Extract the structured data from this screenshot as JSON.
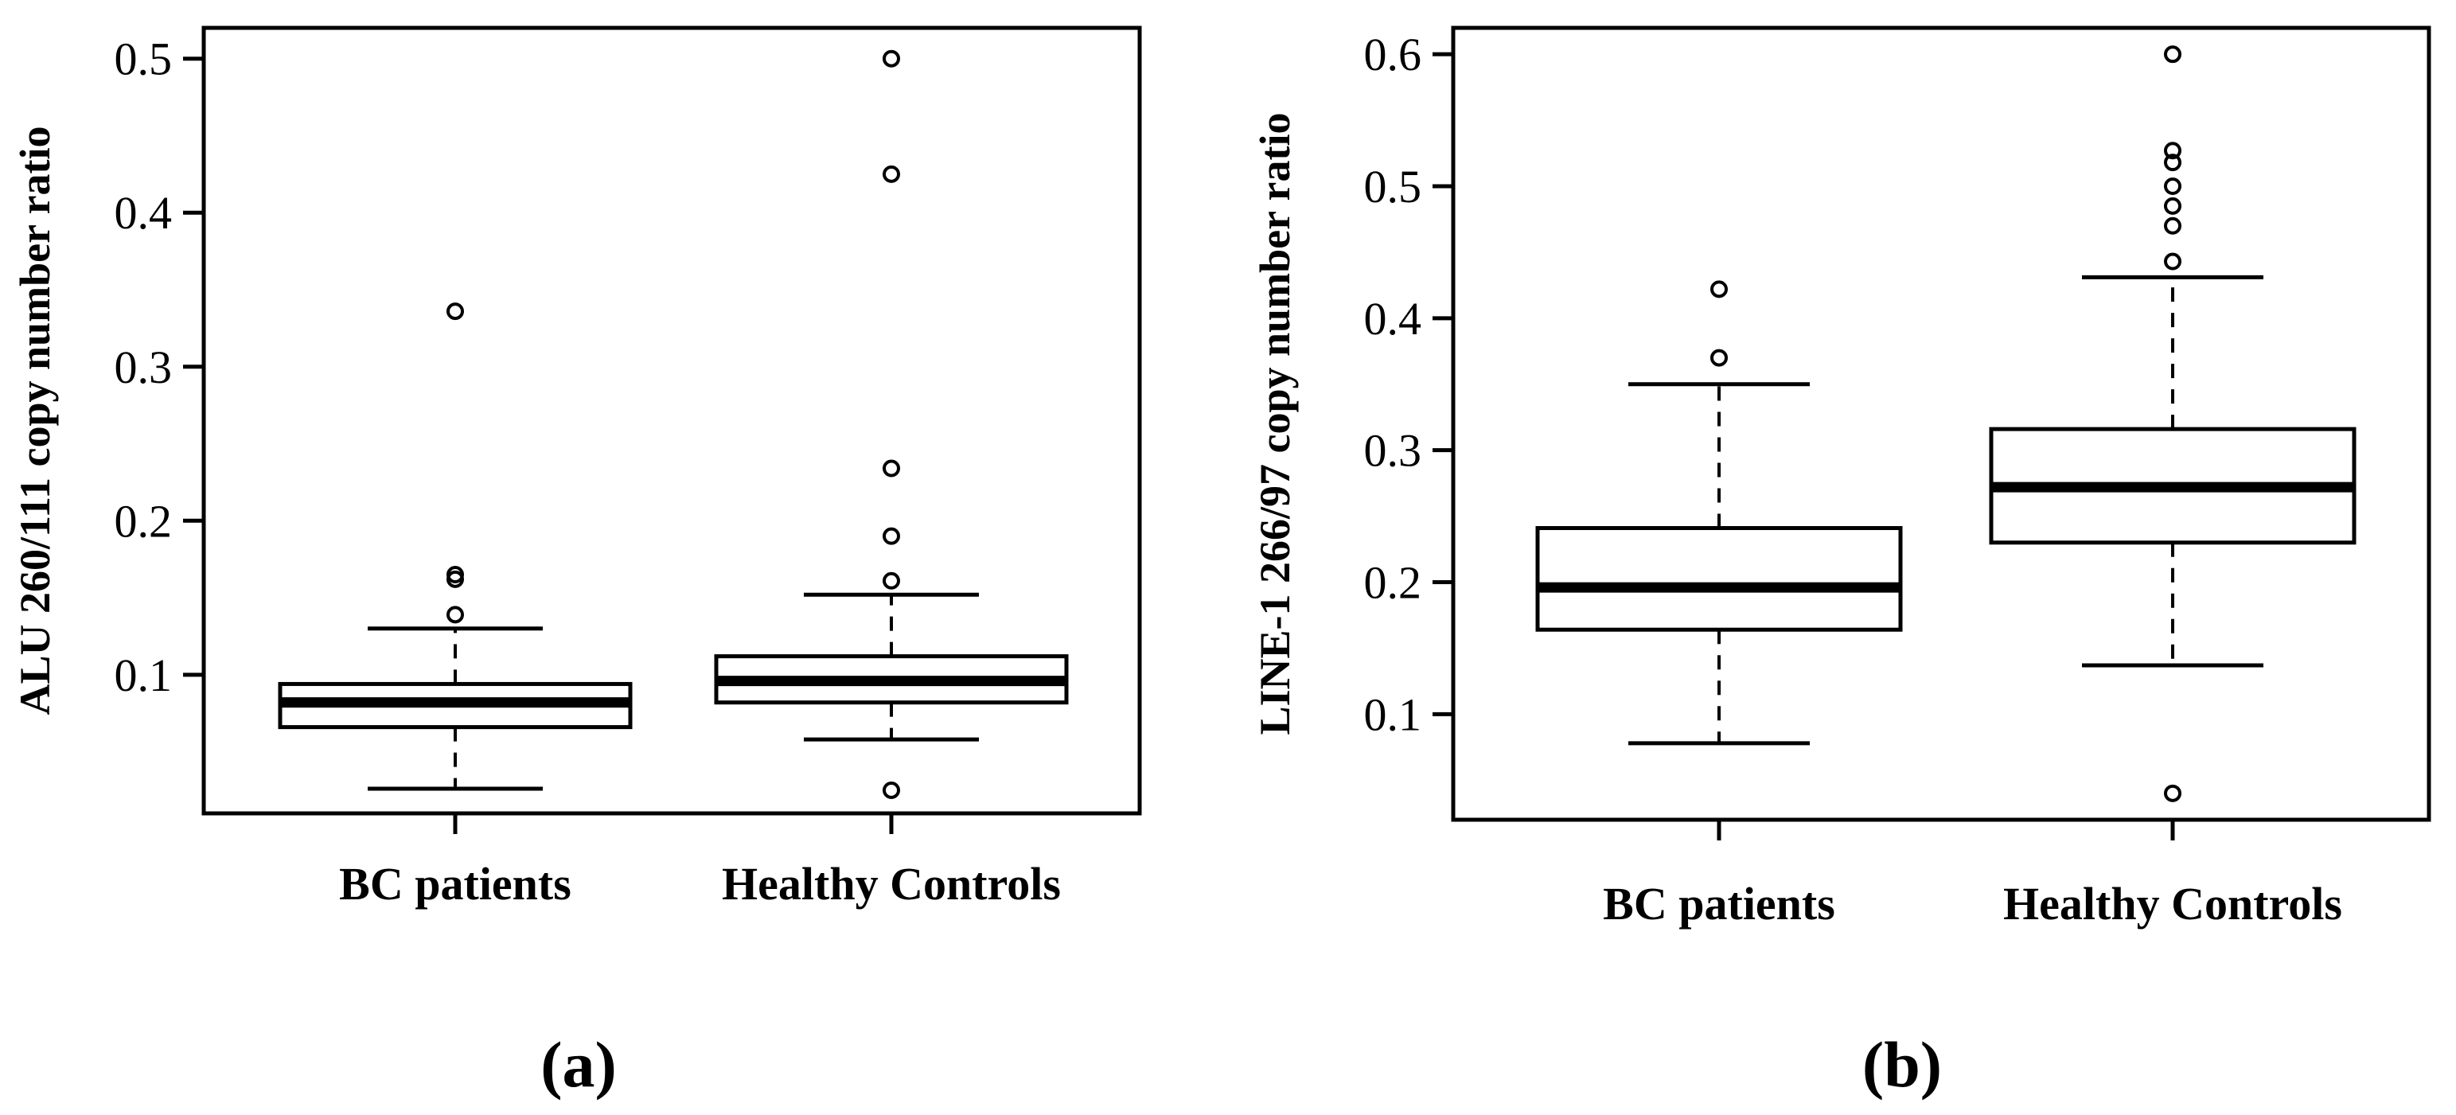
{
  "figure": {
    "panel_labels": [
      "(a)",
      "(b)"
    ]
  },
  "chart_data": [
    {
      "type": "box",
      "panel": "(a)",
      "title": "",
      "xlabel": "",
      "ylabel": "ALU 260/111 copy number ratio",
      "categories": [
        "BC patients",
        "Healthy Controls"
      ],
      "ylim": [
        0.01,
        0.52
      ],
      "yticks": [
        0.1,
        0.2,
        0.3,
        0.4,
        0.5
      ],
      "grid": false,
      "boxes": [
        {
          "name": "BC patients",
          "whisker_low": 0.026,
          "q1": 0.066,
          "median": 0.082,
          "q3": 0.094,
          "whisker_high": 0.13,
          "outliers": [
            0.139,
            0.162,
            0.165,
            0.336
          ]
        },
        {
          "name": "Healthy Controls",
          "whisker_low": 0.058,
          "q1": 0.082,
          "median": 0.096,
          "q3": 0.112,
          "whisker_high": 0.152,
          "outliers": [
            0.025,
            0.161,
            0.19,
            0.234,
            0.425,
            0.5
          ]
        }
      ]
    },
    {
      "type": "box",
      "panel": "(b)",
      "title": "",
      "xlabel": "",
      "ylabel": "LINE-1 266/97 copy number ratio",
      "categories": [
        "BC patients",
        "Healthy Controls"
      ],
      "ylim": [
        0.02,
        0.62
      ],
      "yticks": [
        0.1,
        0.2,
        0.3,
        0.4,
        0.5,
        0.6
      ],
      "grid": false,
      "boxes": [
        {
          "name": "BC patients",
          "whisker_low": 0.078,
          "q1": 0.164,
          "median": 0.196,
          "q3": 0.241,
          "whisker_high": 0.35,
          "outliers": [
            0.37,
            0.422
          ]
        },
        {
          "name": "Healthy Controls",
          "whisker_low": 0.137,
          "q1": 0.23,
          "median": 0.272,
          "q3": 0.316,
          "whisker_high": 0.431,
          "outliers": [
            0.04,
            0.443,
            0.47,
            0.485,
            0.5,
            0.518,
            0.527,
            0.6
          ]
        }
      ]
    }
  ]
}
